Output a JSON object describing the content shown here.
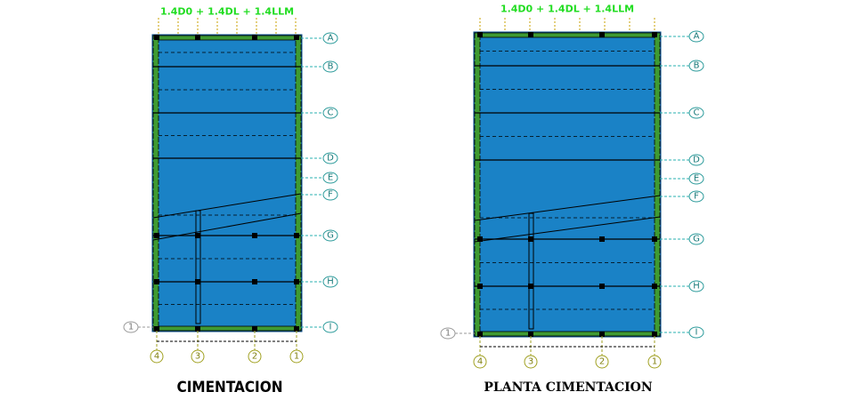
{
  "panels": [
    {
      "load_combo": "1.4D0 + 1.4DL + 1.4LLM",
      "row_axes": [
        "A",
        "B",
        "C",
        "D",
        "E",
        "F",
        "G",
        "H",
        "I"
      ],
      "column_axes": [
        "4",
        "3",
        "2",
        "1"
      ],
      "side_axis": "1",
      "caption": "CIMENTACION"
    },
    {
      "load_combo": "1.4D0 + 1.4DL + 1.4LLM",
      "row_axes": [
        "A",
        "B",
        "C",
        "D",
        "E",
        "F",
        "G",
        "H",
        "I"
      ],
      "column_axes": [
        "4",
        "3",
        "2",
        "1"
      ],
      "side_axis": "1",
      "caption": "PLANTA CIMENTACION"
    }
  ]
}
